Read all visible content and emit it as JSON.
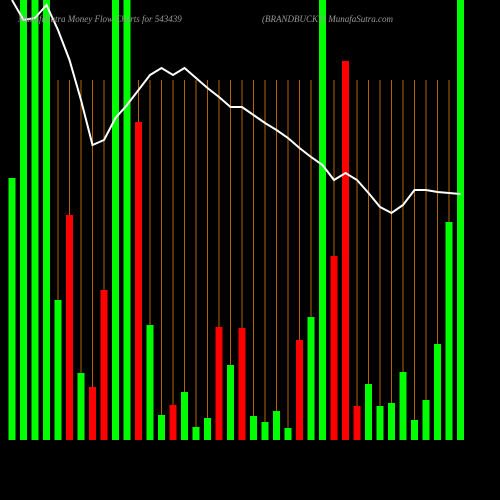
{
  "chart_data": {
    "type": "bar",
    "title": "MunafaSutra Money Flow Charts for 543439",
    "subtitle": "(BRANDBUCKT) MunafaSutra.com",
    "categories": [
      null,
      null,
      null,
      null,
      null,
      null,
      null,
      null,
      null,
      null,
      null,
      null,
      null,
      null,
      null,
      null,
      null,
      null,
      null,
      null,
      null,
      null,
      null,
      null,
      null,
      null,
      null,
      null,
      null,
      null,
      null,
      null,
      null,
      null,
      null,
      null,
      null,
      null,
      null,
      null
    ],
    "ylim": [
      0,
      440
    ],
    "series": [
      {
        "type": "bar",
        "values": [
          262,
          440,
          440,
          440,
          140,
          225,
          67,
          53,
          150,
          440,
          440,
          318,
          115,
          25,
          35,
          48,
          13,
          22,
          113,
          75,
          112,
          24,
          18,
          29,
          12,
          100,
          123,
          440,
          184,
          379,
          34,
          56,
          34,
          37,
          68,
          20,
          40,
          96,
          218,
          440
        ],
        "colors": [
          "#00ff00",
          "#00ff00",
          "#00ff00",
          "#00ff00",
          "#00ff00",
          "#ff0000",
          "#00ff00",
          "#ff0000",
          "#ff0000",
          "#00ff00",
          "#00ff00",
          "#ff0000",
          "#00ff00",
          "#00ff00",
          "#ff0000",
          "#00ff00",
          "#00ff00",
          "#00ff00",
          "#ff0000",
          "#00ff00",
          "#ff0000",
          "#00ff00",
          "#00ff00",
          "#00ff00",
          "#00ff00",
          "#ff0000",
          "#00ff00",
          "#00ff00",
          "#ff0000",
          "#ff0000",
          "#ff0000",
          "#00ff00",
          "#00ff00",
          "#00ff00",
          "#00ff00",
          "#00ff00",
          "#00ff00",
          "#00ff00",
          "#00ff00",
          "#00ff00"
        ]
      },
      {
        "type": "line",
        "color": "#ffffff",
        "values": [
          440,
          420,
          422,
          435,
          410,
          380,
          340,
          295,
          300,
          322,
          335,
          350,
          365,
          372,
          365,
          372,
          362,
          352,
          343,
          333,
          333,
          325,
          317,
          310,
          302,
          292,
          283,
          275,
          260,
          267,
          260,
          247,
          233,
          227,
          235,
          250,
          250,
          248,
          247,
          246
        ]
      }
    ]
  }
}
